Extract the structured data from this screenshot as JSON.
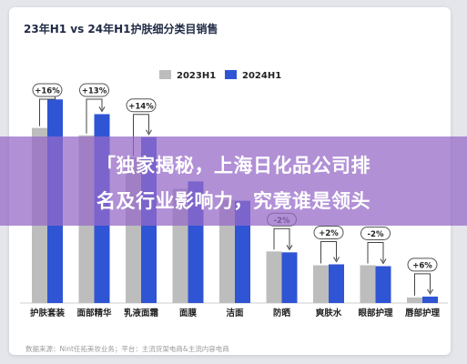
{
  "chart_data": {
    "type": "bar",
    "title": "23年H1 vs 24年H1护肤细分类目销售",
    "categories": [
      "护肤套装",
      "面部精华",
      "乳液面霜",
      "面膜",
      "洁面",
      "防晒",
      "爽肤水",
      "眼部护理",
      "唇部护理"
    ],
    "series": [
      {
        "name": "2023H1",
        "values": [
          190,
          182,
          158,
          124,
          112,
          56,
          41,
          41,
          6
        ]
      },
      {
        "name": "2024H1",
        "values": [
          221,
          205,
          180,
          132,
          111,
          55,
          42,
          40,
          7
        ]
      }
    ],
    "annotations": [
      "+16%",
      "+13%",
      "+14%",
      "",
      "",
      "-2%",
      "+2%",
      "-2%",
      "+6%"
    ],
    "ylim": [
      0,
      240
    ],
    "legend_position": "top",
    "colors": {
      "2023H1": "#bdbdbd",
      "2024H1": "#2f55d4"
    },
    "source": "数据来源：Nint任拓美妆业务；平台：主流货架电商&主流内容电商"
  },
  "banner": {
    "line1": "「独家揭秘，上海日化品公司排",
    "line2": "名及行业影响力，究竟谁是领头"
  }
}
